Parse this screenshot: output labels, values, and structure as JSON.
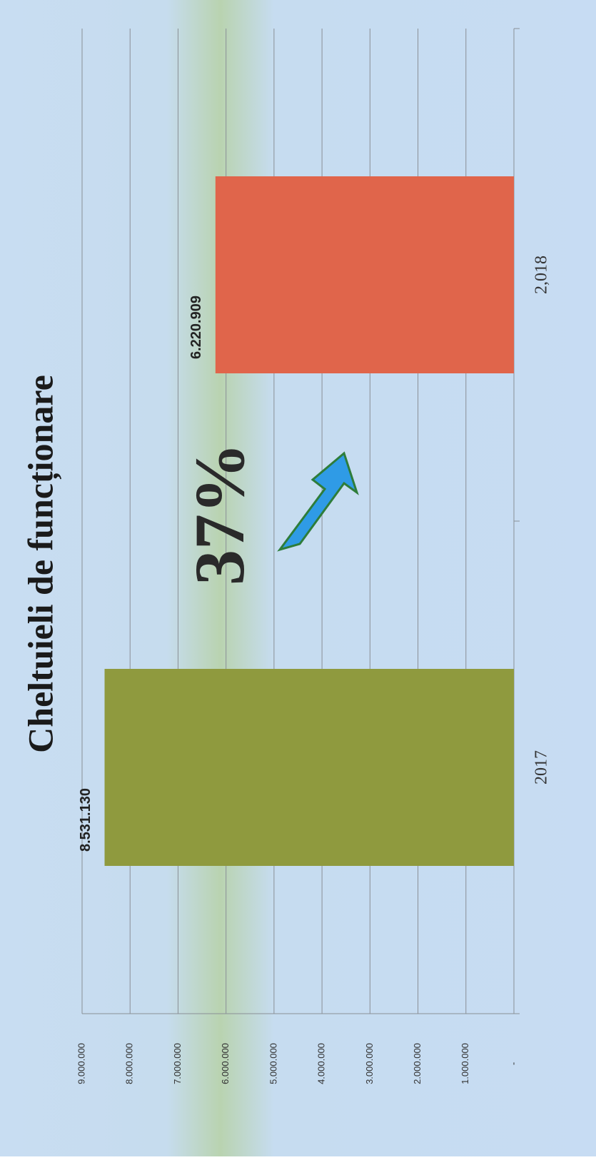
{
  "chart_data": {
    "type": "bar",
    "title": "Cheltuieli de funcționare",
    "categories": [
      "2017",
      "2,018"
    ],
    "values": [
      8531130,
      6220909
    ],
    "value_labels": [
      "8.531.130",
      "6.220.909"
    ],
    "colors": [
      "#8f9a3e",
      "#e0654b"
    ],
    "ylim": [
      0,
      9000000
    ],
    "yticks": [
      {
        "value": 0,
        "label": "-"
      },
      {
        "value": 1000000,
        "label": "1.000.000"
      },
      {
        "value": 2000000,
        "label": "2.000.000"
      },
      {
        "value": 3000000,
        "label": "3.000.000"
      },
      {
        "value": 4000000,
        "label": "4.000.000"
      },
      {
        "value": 5000000,
        "label": "5.000.000"
      },
      {
        "value": 6000000,
        "label": "6.000.000"
      },
      {
        "value": 7000000,
        "label": "7.000.000"
      },
      {
        "value": 8000000,
        "label": "8.000.000"
      },
      {
        "value": 9000000,
        "label": "9.000.000"
      }
    ],
    "annotation": "37%",
    "grid": true
  }
}
